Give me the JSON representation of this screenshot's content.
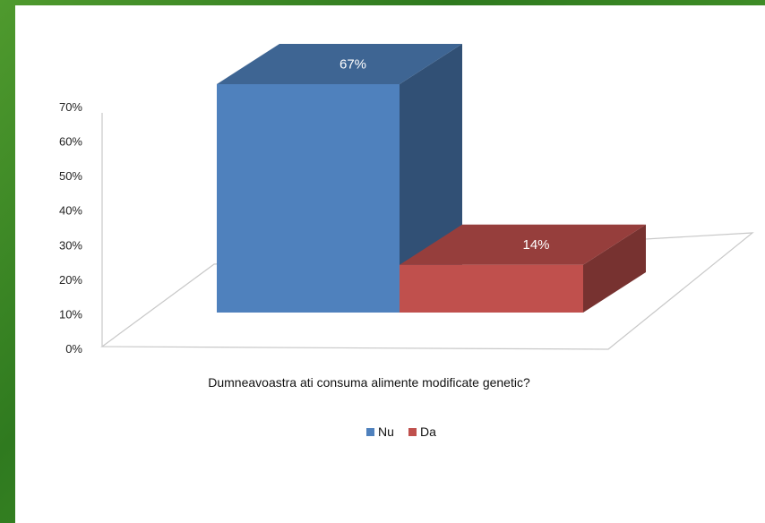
{
  "chart_data": {
    "type": "bar",
    "style": "3d",
    "xlabel": "Dumneavoastra ati consuma alimente modificate genetic?",
    "ylim": [
      0,
      70
    ],
    "yticks": [
      "0%",
      "10%",
      "20%",
      "30%",
      "40%",
      "50%",
      "60%",
      "70%"
    ],
    "series": [
      {
        "name": "Nu",
        "value": 67,
        "label": "67%",
        "color": "#4f81bd"
      },
      {
        "name": "Da",
        "value": 14,
        "label": "14%",
        "color": "#c0504d"
      }
    ],
    "legend": "bottom"
  }
}
